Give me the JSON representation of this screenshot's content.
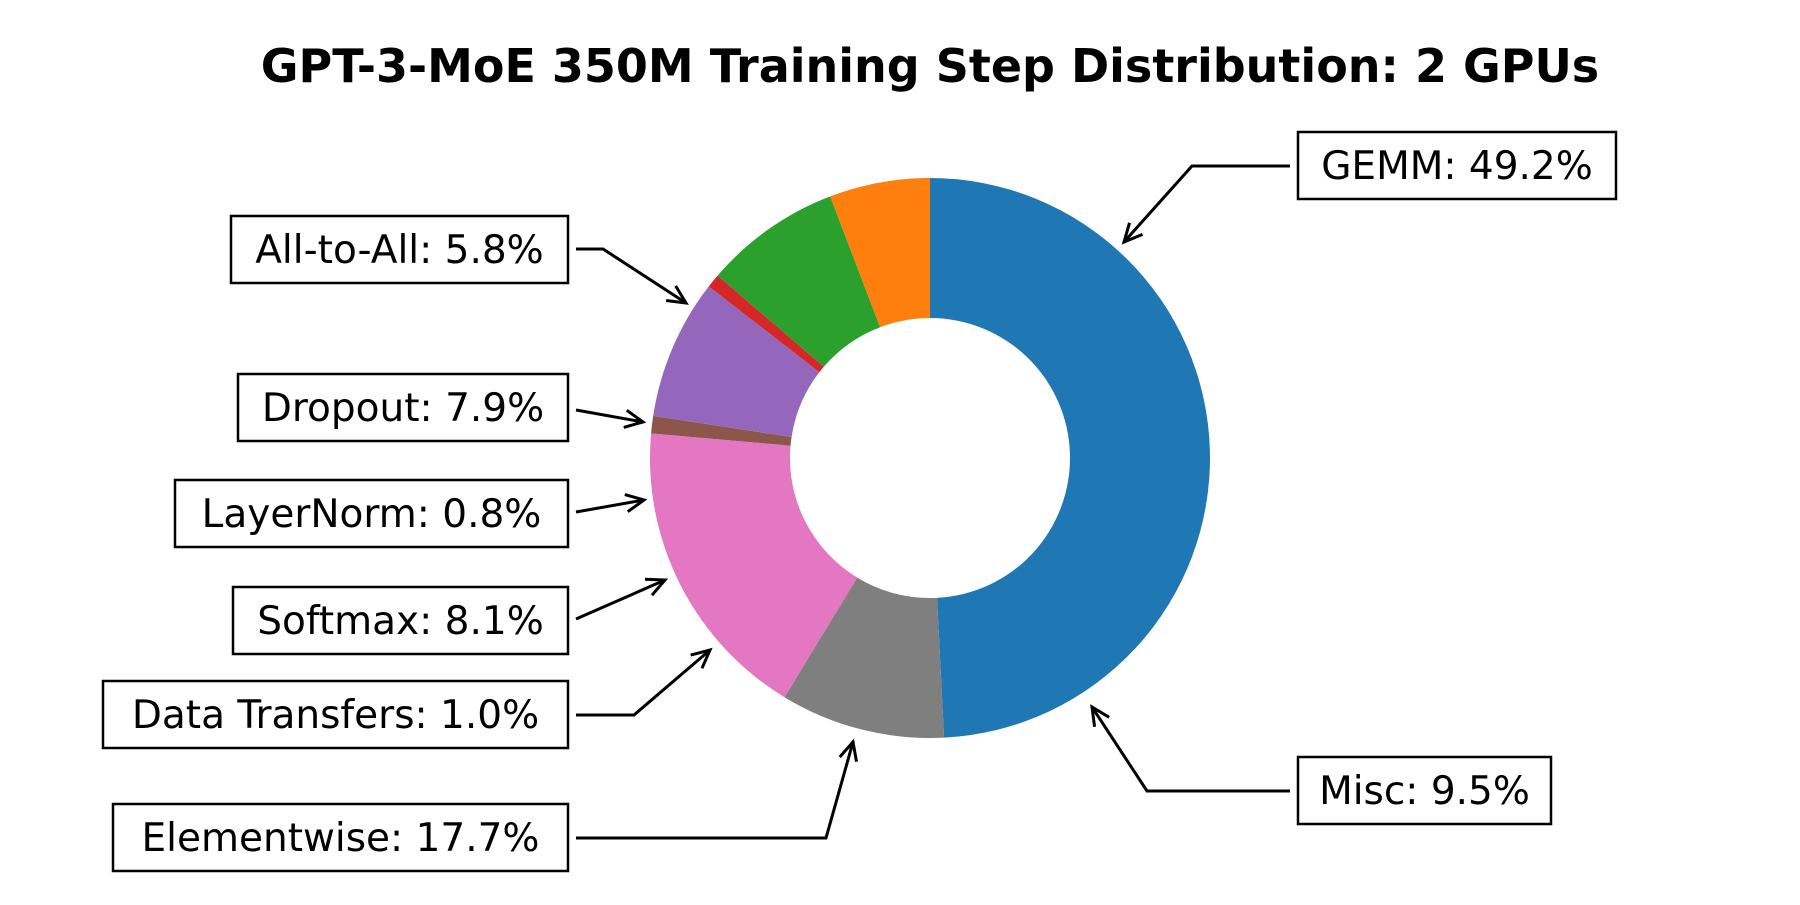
{
  "chart_data": {
    "type": "pie",
    "style": "donut",
    "title": "GPT-3-MoE 350M Training Step Distribution: 2 GPUs",
    "start_angle_deg": 90,
    "direction": "clockwise",
    "slices": [
      {
        "name": "GEMM",
        "value": 49.2,
        "label": "GEMM: 49.2%",
        "color": "#1f77b4"
      },
      {
        "name": "Misc",
        "value": 9.5,
        "label": "Misc: 9.5%",
        "color": "#7f7f7f"
      },
      {
        "name": "Elementwise",
        "value": 17.7,
        "label": "Elementwise: 17.7%",
        "color": "#e377c2"
      },
      {
        "name": "Data Transfers",
        "value": 1.0,
        "label": "Data Transfers: 1.0%",
        "color": "#8c564b"
      },
      {
        "name": "Softmax",
        "value": 8.1,
        "label": "Softmax: 8.1%",
        "color": "#9467bd"
      },
      {
        "name": "LayerNorm",
        "value": 0.8,
        "label": "LayerNorm: 0.8%",
        "color": "#d62728"
      },
      {
        "name": "Dropout",
        "value": 7.9,
        "label": "Dropout: 7.9%",
        "color": "#2ca02c"
      },
      {
        "name": "All-to-All",
        "value": 5.8,
        "label": "All-to-All: 5.8%",
        "color": "#ff7f0e"
      }
    ],
    "legend": "none",
    "grid": false
  }
}
